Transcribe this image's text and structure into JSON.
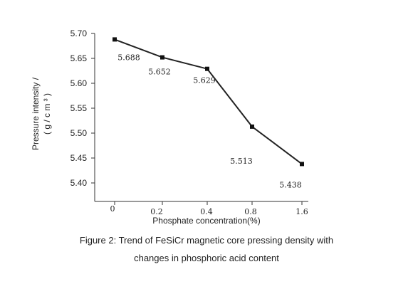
{
  "chart_data": {
    "type": "line",
    "title": "",
    "xlabel": "Phosphate concentration(%)",
    "ylabel_lines": [
      "Pressure intensity /",
      "( g / c m ³ )"
    ],
    "x_ticks": [
      "0",
      "0.2",
      "0.4",
      "0.8",
      "1.6"
    ],
    "y_ticks": [
      "5.70",
      "5.65",
      "5.60",
      "5.55",
      "5.50",
      "5.45",
      "5.40"
    ],
    "ylim": [
      5.4,
      5.7
    ],
    "grid": false,
    "legend": "none",
    "series": [
      {
        "categories": [
          "0",
          "0.2",
          "0.4",
          "0.8",
          "1.6"
        ],
        "values": [
          5.688,
          5.652,
          5.629,
          5.513,
          5.438
        ],
        "labels": [
          "5.688",
          "5.652",
          "5.629",
          "5.513",
          "5.438"
        ]
      }
    ],
    "line_color": "#222222"
  },
  "caption": {
    "line1": "Figure 2: Trend of FeSiCr magnetic core pressing density with",
    "line2": "changes in phosphoric acid content"
  }
}
